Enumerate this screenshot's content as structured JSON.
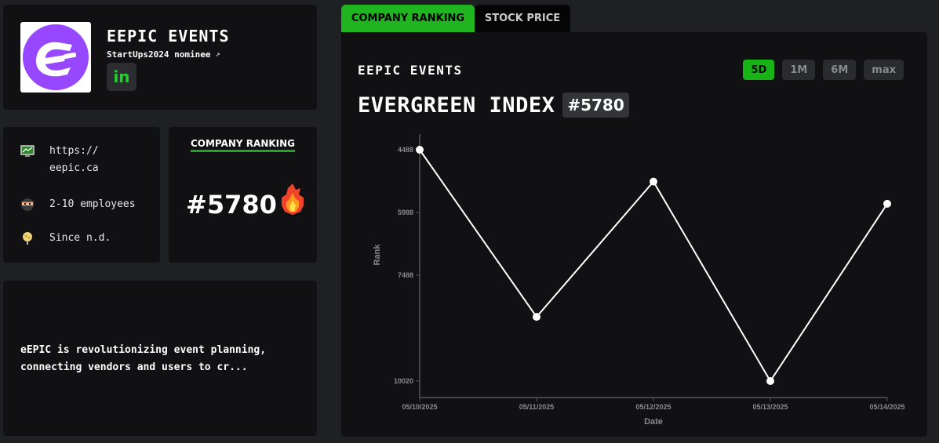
{
  "company": {
    "name": "EEPIC EVENTS",
    "nominee": "StartUps2024 nominee",
    "linkedin": "in",
    "logo_color": "#9747ff"
  },
  "info": {
    "website": "https://\neepic.ca",
    "employees": "2-10 employees",
    "since": "Since n.d."
  },
  "ranking_card": {
    "title": "COMPANY RANKING",
    "rank": "#5780"
  },
  "description": "eEPIC is revolutionizing event planning, connecting vendors and users to cr...",
  "tabs": [
    {
      "label": "COMPANY RANKING",
      "active": true
    },
    {
      "label": "STOCK PRICE",
      "active": false
    }
  ],
  "chart_panel": {
    "company": "EEPIC EVENTS",
    "index_title": "EVERGREEN INDEX",
    "index_rank": "#5780",
    "ranges": [
      "5D",
      "1M",
      "6M",
      "max"
    ],
    "active_range": "5D"
  },
  "colors": {
    "accent": "#17b317",
    "background": "#1f2023",
    "panel": "#111113"
  },
  "chart_data": {
    "type": "line",
    "x": [
      "05/10/2025",
      "05/11/2025",
      "05/12/2025",
      "05/13/2025",
      "05/14/2025"
    ],
    "series": [
      {
        "values": [
          4488,
          8485,
          5250,
          10020,
          5780
        ]
      }
    ],
    "xlabel": "Date",
    "ylabel": "Rank",
    "yticks": [
      4488,
      5988,
      7488,
      10020
    ],
    "ylim": [
      4488,
      10020
    ],
    "y_inverted": true,
    "grid": false
  }
}
